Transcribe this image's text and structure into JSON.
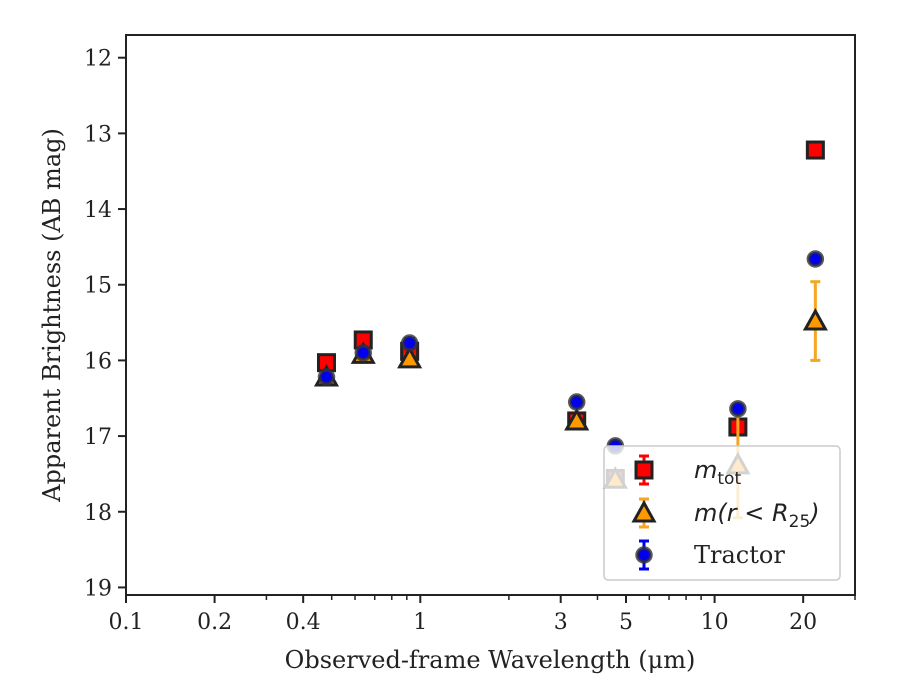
{
  "chart_data": {
    "type": "scatter",
    "xlabel": "Observed-frame Wavelength (μm)",
    "ylabel": "Apparent Brightness (AB mag)",
    "x_scale": "log",
    "xlim": [
      0.1,
      30
    ],
    "ylim": [
      19.1,
      11.7
    ],
    "y_inverted": true,
    "x_ticks": [
      0.1,
      0.2,
      0.4,
      1,
      3,
      5,
      10,
      20
    ],
    "x_tick_labels": [
      "0.1",
      "0.2",
      "0.4",
      "1",
      "3",
      "5",
      "10",
      "20"
    ],
    "y_ticks": [
      12,
      13,
      14,
      15,
      16,
      17,
      18,
      19
    ],
    "y_tick_labels": [
      "12",
      "13",
      "14",
      "15",
      "16",
      "17",
      "18",
      "19"
    ],
    "grid": false,
    "legend_position": "bottom-right",
    "series": [
      {
        "name_parts": [
          "m",
          "tot"
        ],
        "marker": "square",
        "color": "#ff0000",
        "edge_color": "#222222",
        "err_color": "#ff0000",
        "points": [
          {
            "x": 0.48,
            "y": 16.03,
            "err": 0.06
          },
          {
            "x": 0.64,
            "y": 15.73,
            "err": 0.06
          },
          {
            "x": 0.92,
            "y": 15.88,
            "err": 0.06
          },
          {
            "x": 3.4,
            "y": 16.8,
            "err": 0.06
          },
          {
            "x": 4.6,
            "y": 17.56,
            "err": 0.06
          },
          {
            "x": 12.0,
            "y": 16.88,
            "err": 0.06
          },
          {
            "x": 22.0,
            "y": 13.22,
            "err": 0.06
          }
        ]
      },
      {
        "name_parts": [
          "m(r < R",
          "25",
          ")"
        ],
        "marker": "triangle",
        "color": "#ff9900",
        "edge_color": "#222222",
        "err_color": "#f5a623",
        "points": [
          {
            "x": 0.48,
            "y": 16.22,
            "err": 0.05
          },
          {
            "x": 0.64,
            "y": 15.92,
            "err": 0.05
          },
          {
            "x": 0.92,
            "y": 15.98,
            "err": 0.05
          },
          {
            "x": 3.4,
            "y": 16.8,
            "err": 0.05
          },
          {
            "x": 4.6,
            "y": 17.57,
            "err": 0.05
          },
          {
            "x": 12.0,
            "y": 17.38,
            "err": 0.7
          },
          {
            "x": 22.0,
            "y": 15.48,
            "err": 0.52
          }
        ]
      },
      {
        "name": "Tractor",
        "marker": "circle",
        "color": "#0000ee",
        "edge_color": "#333333",
        "err_color": "#0000ee",
        "points": [
          {
            "x": 0.48,
            "y": 16.22,
            "err": 0.04
          },
          {
            "x": 0.64,
            "y": 15.9,
            "err": 0.04
          },
          {
            "x": 0.92,
            "y": 15.77,
            "err": 0.06
          },
          {
            "x": 3.4,
            "y": 16.55,
            "err": 0.05
          },
          {
            "x": 4.6,
            "y": 17.13,
            "err": 0.05
          },
          {
            "x": 12.0,
            "y": 16.64,
            "err": 0.05
          },
          {
            "x": 22.0,
            "y": 14.66,
            "err": 0.05
          }
        ]
      }
    ]
  }
}
